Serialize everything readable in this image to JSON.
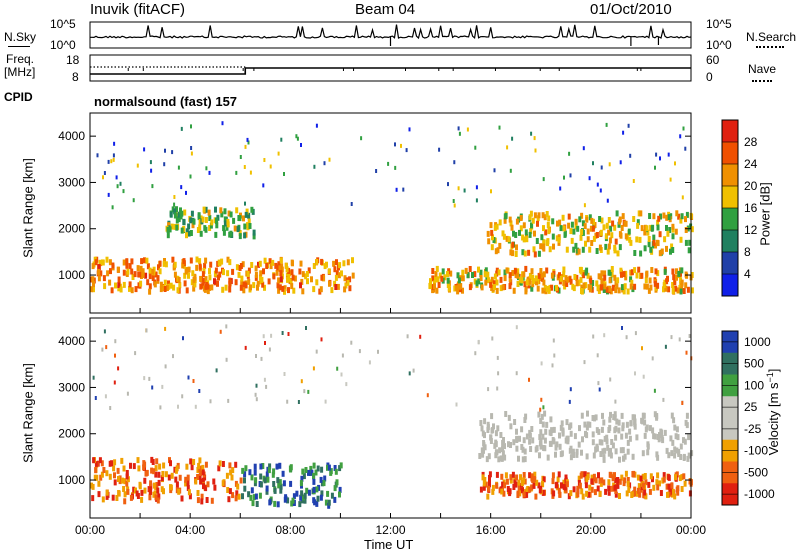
{
  "header": {
    "radar": "Inuvik (fitACF)",
    "beam": "Beam 04",
    "date": "01/Oct/2010"
  },
  "sky_panel": {
    "left_label": "N.Sky",
    "right_label": "N.Search",
    "left_ticks": [
      "10^5",
      "10^0"
    ],
    "right_ticks": [
      "10^5",
      "10^0"
    ]
  },
  "freq_panel": {
    "left_label": "Freq.",
    "left_unit": "[MHz]",
    "right_label": "Nave",
    "left_ticks": [
      "18",
      "8"
    ],
    "right_ticks": [
      "60",
      "0"
    ]
  },
  "cpid_panel": {
    "label": "CPID",
    "program": "normalsound (fast) 157"
  },
  "colors": {
    "power_scale": [
      "#1020e8",
      "#2040a8",
      "#208060",
      "#30a040",
      "#f0c000",
      "#f09000",
      "#f05000",
      "#e02010"
    ],
    "velocity_scale": [
      "#2040b0",
      "#307060",
      "#40a040",
      "#c8c8c0",
      "#c8c8c0",
      "#f0a000",
      "#f06010",
      "#e02010"
    ],
    "ground_scatter": "#b8b8b0"
  },
  "chart_data": [
    {
      "type": "heatmap",
      "title": "Power",
      "xlabel": "Time UT",
      "ylabel": "Slant Range [km]",
      "xlim": [
        "00:00",
        "24:00"
      ],
      "ylim": [
        180,
        4500
      ],
      "x_ticks": [
        "00:00",
        "04:00",
        "08:00",
        "12:00",
        "16:00",
        "20:00",
        "00:00"
      ],
      "y_ticks": [
        1000,
        2000,
        3000,
        4000
      ],
      "colorbar": {
        "label": "Power [dB]",
        "ticks": [
          4,
          8,
          12,
          16,
          20,
          24,
          28
        ],
        "range": [
          0,
          32
        ]
      },
      "echo_bands": [
        {
          "name": "near-range echoes",
          "time_start": 0,
          "time_end": 10.5,
          "range_min": 700,
          "range_max": 1400,
          "peak_power_db": 30
        },
        {
          "name": "near-range echoes",
          "time_start": 13.5,
          "time_end": 24,
          "range_min": 700,
          "range_max": 1200,
          "peak_power_db": 28
        },
        {
          "name": "far-range echoes",
          "time_start": 15.8,
          "time_end": 24,
          "range_min": 1500,
          "range_max": 2400,
          "peak_power_db": 26
        },
        {
          "name": "morning far echoes",
          "time_start": 3,
          "time_end": 6.5,
          "range_min": 1900,
          "range_max": 2500,
          "peak_power_db": 22
        }
      ]
    },
    {
      "type": "heatmap",
      "title": "Velocity",
      "xlabel": "Time UT",
      "ylabel": "Slant Range [km]",
      "xlim": [
        "00:00",
        "24:00"
      ],
      "ylim": [
        180,
        4500
      ],
      "x_ticks": [
        "00:00",
        "04:00",
        "08:00",
        "12:00",
        "16:00",
        "20:00",
        "00:00"
      ],
      "y_ticks": [
        1000,
        2000,
        3000,
        4000
      ],
      "colorbar": {
        "label": "Velocity [m s^-1]",
        "ticks": [
          1000,
          500,
          100,
          25,
          -25,
          -100,
          -500,
          -1000
        ]
      },
      "echo_bands": [
        {
          "name": "negative velocity echoes",
          "time_start": 0,
          "time_end": 6,
          "range_min": 600,
          "range_max": 1500,
          "velocity": -300
        },
        {
          "name": "positive velocity echoes",
          "time_start": 6,
          "time_end": 10,
          "range_min": 500,
          "range_max": 1400,
          "velocity": 300
        },
        {
          "name": "ground scatter",
          "time_start": 15.5,
          "time_end": 24,
          "range_min": 1500,
          "range_max": 2500,
          "velocity": 0
        },
        {
          "name": "negative velocity echoes",
          "time_start": 15.5,
          "time_end": 24,
          "range_min": 700,
          "range_max": 1200,
          "velocity": -200
        }
      ]
    }
  ]
}
